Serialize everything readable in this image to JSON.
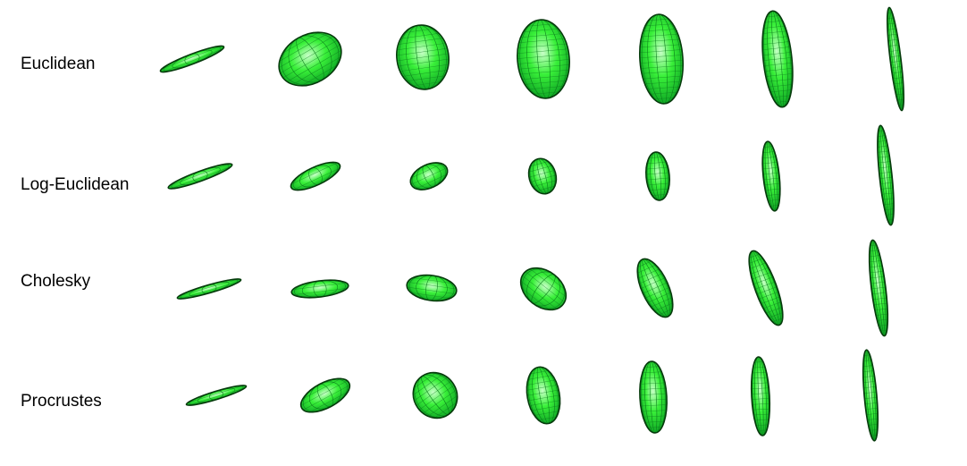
{
  "rows": [
    {
      "label": "Euclidean"
    },
    {
      "label": "Log-Euclidean"
    },
    {
      "label": "Cholesky"
    },
    {
      "label": "Procrustes"
    }
  ],
  "colors": {
    "fill_light": "#c8ffc8",
    "fill_mid": "#39f039",
    "fill_dark": "#0a9f22",
    "mesh": "#0b7a1c",
    "outline": "#063b0c",
    "label_text": "#000000"
  }
}
